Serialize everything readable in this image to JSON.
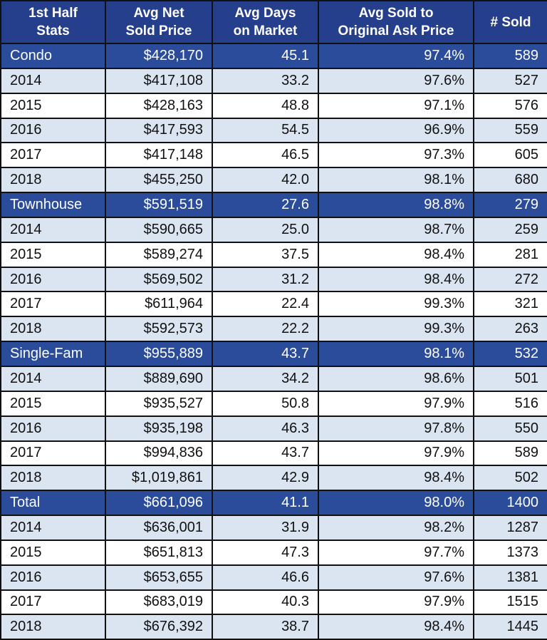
{
  "chart_data": {
    "type": "table",
    "columns": [
      "1st Half\nStats",
      "Avg Net\nSold Price",
      "Avg Days\non Market",
      "Avg Sold to\nOriginal Ask Price",
      "# Sold"
    ],
    "rows": [
      {
        "label": "Condo",
        "group": true,
        "values": [
          "$428,170",
          "45.1",
          "97.4%",
          "589"
        ]
      },
      {
        "label": "2014",
        "values": [
          "$417,108",
          "33.2",
          "97.6%",
          "527"
        ]
      },
      {
        "label": "2015",
        "values": [
          "$428,163",
          "48.8",
          "97.1%",
          "576"
        ]
      },
      {
        "label": "2016",
        "values": [
          "$417,593",
          "54.5",
          "96.9%",
          "559"
        ]
      },
      {
        "label": "2017",
        "values": [
          "$417,148",
          "46.5",
          "97.3%",
          "605"
        ]
      },
      {
        "label": "2018",
        "values": [
          "$455,250",
          "42.0",
          "98.1%",
          "680"
        ]
      },
      {
        "label": "Townhouse",
        "group": true,
        "values": [
          "$591,519",
          "27.6",
          "98.8%",
          "279"
        ]
      },
      {
        "label": "2014",
        "values": [
          "$590,665",
          "25.0",
          "98.7%",
          "259"
        ]
      },
      {
        "label": "2015",
        "values": [
          "$589,274",
          "37.5",
          "98.4%",
          "281"
        ]
      },
      {
        "label": "2016",
        "values": [
          "$569,502",
          "31.2",
          "98.4%",
          "272"
        ]
      },
      {
        "label": "2017",
        "values": [
          "$611,964",
          "22.4",
          "99.3%",
          "321"
        ]
      },
      {
        "label": "2018",
        "values": [
          "$592,573",
          "22.2",
          "99.3%",
          "263"
        ]
      },
      {
        "label": "Single-Fam",
        "group": true,
        "values": [
          "$955,889",
          "43.7",
          "98.1%",
          "532"
        ]
      },
      {
        "label": "2014",
        "values": [
          "$889,690",
          "34.2",
          "98.6%",
          "501"
        ]
      },
      {
        "label": "2015",
        "values": [
          "$935,527",
          "50.8",
          "97.9%",
          "516"
        ]
      },
      {
        "label": "2016",
        "values": [
          "$935,198",
          "46.3",
          "97.8%",
          "550"
        ]
      },
      {
        "label": "2017",
        "values": [
          "$994,836",
          "43.7",
          "97.9%",
          "589"
        ]
      },
      {
        "label": "2018",
        "values": [
          "$1,019,861",
          "42.9",
          "98.4%",
          "502"
        ]
      },
      {
        "label": "Total",
        "group": true,
        "values": [
          "$661,096",
          "41.1",
          "98.0%",
          "1400"
        ]
      },
      {
        "label": "2014",
        "values": [
          "$636,001",
          "31.9",
          "98.2%",
          "1287"
        ]
      },
      {
        "label": "2015",
        "values": [
          "$651,813",
          "47.3",
          "97.7%",
          "1373"
        ]
      },
      {
        "label": "2016",
        "values": [
          "$653,655",
          "46.6",
          "97.6%",
          "1381"
        ]
      },
      {
        "label": "2017",
        "values": [
          "$683,019",
          "40.3",
          "97.9%",
          "1515"
        ]
      },
      {
        "label": "2018",
        "values": [
          "$676,392",
          "38.7",
          "98.4%",
          "1445"
        ]
      }
    ],
    "colors": {
      "header": "#253f8c",
      "group_row": "#2b4c9b",
      "stripe_row": "#dbe5f1",
      "plain_row": "#ffffff"
    }
  }
}
